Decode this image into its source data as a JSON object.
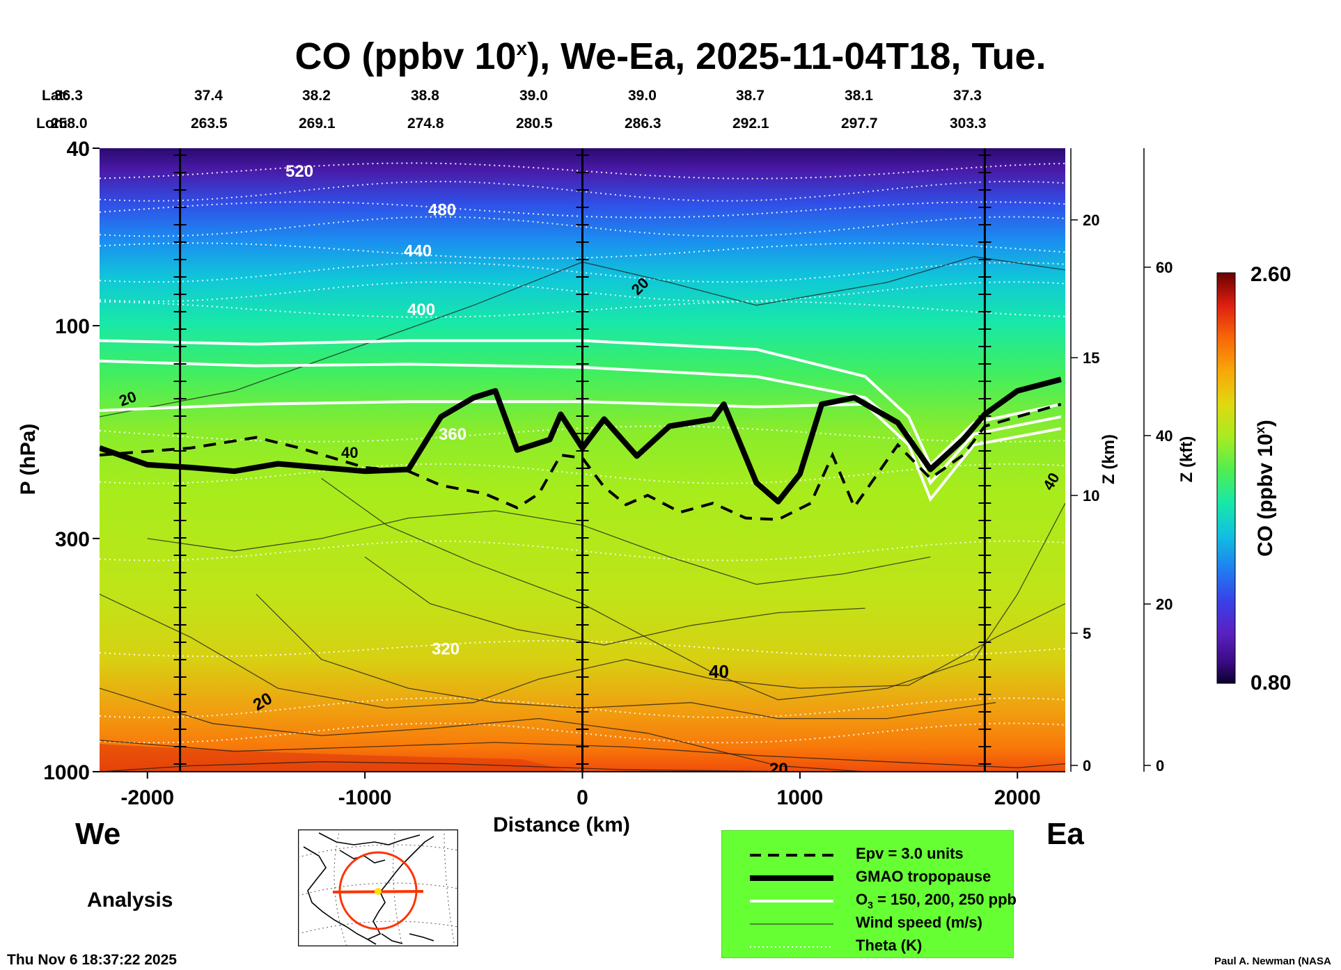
{
  "title": {
    "main": "CO (ppbv 10",
    "sup": "x",
    "rest": "), We-Ea, 2025-11-04T18, Tue."
  },
  "header": {
    "lat_label": "Lat:",
    "lon_label": "Lon:",
    "lat_values": [
      "36.3",
      "37.4",
      "38.2",
      "38.8",
      "39.0",
      "39.0",
      "38.7",
      "38.1",
      "37.3"
    ],
    "lon_values": [
      "258.0",
      "263.5",
      "269.1",
      "274.8",
      "280.5",
      "286.3",
      "292.1",
      "297.7",
      "303.3"
    ]
  },
  "panel": {
    "west_label": "We",
    "east_label": "Ea",
    "analysis_label": "Analysis",
    "timestamp": "Thu Nov  6 18:37:22 2025",
    "credit": "Paul A. Newman (NASA"
  },
  "colorbar": {
    "label_main": "CO (ppbv 10",
    "label_sup": "x",
    "label_rest": ")",
    "max_label": "2.60",
    "min_label": "0.80",
    "colors": [
      "#0a0030",
      "#330066",
      "#5a1fb0",
      "#3a3ae0",
      "#1e78f0",
      "#10b0e8",
      "#14e0c0",
      "#20f090",
      "#60f040",
      "#a8ec20",
      "#d8e010",
      "#f0c010",
      "#f8a008",
      "#f87808",
      "#f04808",
      "#e02010",
      "#b00808",
      "#6a0000"
    ]
  },
  "legend": {
    "items": [
      {
        "label": "Epv = 3.0 units",
        "style": "dashed"
      },
      {
        "label": "GMAO tropopause",
        "style": "thick"
      },
      {
        "label": "O3 = 150, 200, 250 ppb",
        "style": "white"
      },
      {
        "label": "Wind speed (m/s)",
        "style": "thin"
      },
      {
        "label": "Theta (K)",
        "style": "dotted"
      }
    ],
    "o3_prefix": "O",
    "o3_sub": "3",
    "o3_rest": " = 150, 200, 250 ppb"
  },
  "chart_data": {
    "type": "heatmap",
    "title": "CO (ppbv 10x), We-Ea, 2025-11-04T18, Tue.",
    "xlabel": "Distance (km)",
    "ylabel": "P (hPa)",
    "y2label": "Z (km)",
    "y3label": "Z (kft)",
    "xlim": [
      -2220,
      2220
    ],
    "ylim": [
      1000,
      40
    ],
    "y_scale": "log",
    "x_ticks": [
      -2000,
      -1000,
      0,
      1000,
      2000
    ],
    "x_tick_labels": [
      "-2000",
      "-1000",
      "0",
      "1000",
      "2000"
    ],
    "y_ticks": [
      40,
      100,
      300,
      1000
    ],
    "y_tick_labels": [
      "40",
      "100",
      "300",
      "1000"
    ],
    "z_km_ticks": [
      "0",
      "5",
      "10",
      "15",
      "20"
    ],
    "z_kft_ticks": [
      "0",
      "20",
      "40",
      "60"
    ],
    "colorbar_range": [
      0.8,
      2.6
    ],
    "vertical_section_lines_km": [
      -1850,
      0,
      1850
    ],
    "theta_contours_K": [
      {
        "label": "520"
      },
      {
        "label": "480"
      },
      {
        "label": "440"
      },
      {
        "label": "400"
      },
      {
        "label": "360"
      },
      {
        "label": "320"
      }
    ],
    "wind_contours_ms": [
      {
        "label": "20"
      },
      {
        "label": "40"
      }
    ],
    "tropopause_hPa": [
      [
        -2220,
        188
      ],
      [
        -2000,
        205
      ],
      [
        -1800,
        208
      ],
      [
        -1600,
        212
      ],
      [
        -1400,
        204
      ],
      [
        -1200,
        208
      ],
      [
        -1000,
        212
      ],
      [
        -800,
        210
      ],
      [
        -650,
        160
      ],
      [
        -500,
        145
      ],
      [
        -400,
        140
      ],
      [
        -300,
        190
      ],
      [
        -150,
        180
      ],
      [
        -100,
        158
      ],
      [
        0,
        188
      ],
      [
        100,
        162
      ],
      [
        250,
        196
      ],
      [
        400,
        168
      ],
      [
        600,
        162
      ],
      [
        650,
        150
      ],
      [
        800,
        225
      ],
      [
        900,
        248
      ],
      [
        1000,
        215
      ],
      [
        1100,
        150
      ],
      [
        1250,
        145
      ],
      [
        1450,
        165
      ],
      [
        1600,
        210
      ],
      [
        1750,
        180
      ],
      [
        1850,
        158
      ],
      [
        2000,
        140
      ],
      [
        2200,
        132
      ]
    ],
    "epv_hPa": [
      [
        -2220,
        195
      ],
      [
        -1800,
        188
      ],
      [
        -1500,
        178
      ],
      [
        -1300,
        188
      ],
      [
        -1000,
        208
      ],
      [
        -800,
        212
      ],
      [
        -650,
        228
      ],
      [
        -450,
        238
      ],
      [
        -300,
        256
      ],
      [
        -200,
        238
      ],
      [
        -100,
        195
      ],
      [
        0,
        198
      ],
      [
        100,
        230
      ],
      [
        200,
        252
      ],
      [
        300,
        240
      ],
      [
        450,
        262
      ],
      [
        600,
        250
      ],
      [
        750,
        270
      ],
      [
        900,
        272
      ],
      [
        1050,
        250
      ],
      [
        1150,
        195
      ],
      [
        1250,
        255
      ],
      [
        1450,
        185
      ],
      [
        1600,
        220
      ],
      [
        1750,
        195
      ],
      [
        1850,
        168
      ],
      [
        2200,
        150
      ]
    ],
    "o3_150_hPa": [
      [
        -2220,
        108
      ],
      [
        -1500,
        110
      ],
      [
        -800,
        108
      ],
      [
        0,
        108
      ],
      [
        800,
        113
      ],
      [
        1300,
        130
      ],
      [
        1500,
        160
      ],
      [
        1600,
        205
      ],
      [
        1800,
        165
      ],
      [
        2200,
        150
      ]
    ],
    "o3_200_hPa": [
      [
        -2220,
        120
      ],
      [
        -1500,
        123
      ],
      [
        -800,
        122
      ],
      [
        0,
        124
      ],
      [
        800,
        130
      ],
      [
        1300,
        145
      ],
      [
        1500,
        175
      ],
      [
        1600,
        225
      ],
      [
        1800,
        175
      ],
      [
        2200,
        160
      ]
    ],
    "o3_250_hPa": [
      [
        -2220,
        155
      ],
      [
        -1500,
        150
      ],
      [
        -800,
        148
      ],
      [
        0,
        148
      ],
      [
        800,
        152
      ],
      [
        1300,
        150
      ],
      [
        1500,
        185
      ],
      [
        1600,
        245
      ],
      [
        1800,
        185
      ],
      [
        2200,
        170
      ]
    ]
  }
}
